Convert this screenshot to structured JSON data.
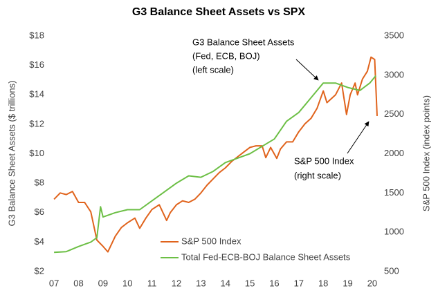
{
  "chart_data": {
    "type": "line",
    "title": "G3 Balance Sheet Assets vs SPX",
    "ylabel": "G3 Balance Sheet Assets ($ trillions)",
    "y2label": "S&P 500 Index (index points)",
    "xlim": [
      2006.77,
      2020.2
    ],
    "xticks": [
      {
        "value": 2007,
        "label": "07"
      },
      {
        "value": 2008,
        "label": "08"
      },
      {
        "value": 2009,
        "label": "09"
      },
      {
        "value": 2010,
        "label": "10"
      },
      {
        "value": 2011,
        "label": "11"
      },
      {
        "value": 2012,
        "label": "12"
      },
      {
        "value": 2013,
        "label": "13"
      },
      {
        "value": 2014,
        "label": "14"
      },
      {
        "value": 2015,
        "label": "15"
      },
      {
        "value": 2016,
        "label": "16"
      },
      {
        "value": 2017,
        "label": "17"
      },
      {
        "value": 2018,
        "label": "18"
      },
      {
        "value": 2019,
        "label": "19"
      },
      {
        "value": 2020,
        "label": "20"
      }
    ],
    "ylim": [
      2,
      18
    ],
    "yticks": [
      {
        "value": 2,
        "label": "$2"
      },
      {
        "value": 4,
        "label": "$4"
      },
      {
        "value": 6,
        "label": "$6"
      },
      {
        "value": 8,
        "label": "$8"
      },
      {
        "value": 10,
        "label": "$10"
      },
      {
        "value": 12,
        "label": "$12"
      },
      {
        "value": 14,
        "label": "$14"
      },
      {
        "value": 16,
        "label": "$16"
      },
      {
        "value": 18,
        "label": "$18"
      }
    ],
    "y2lim": [
      500,
      3500
    ],
    "y2ticks": [
      500,
      1000,
      1500,
      2000,
      2500,
      3000,
      3500
    ],
    "grid": false,
    "legend": "bottom",
    "series": [
      {
        "name": "S&P 500 Index",
        "color": "#e0631c",
        "axis": "y2",
        "x": [
          2007.0,
          2007.25,
          2007.5,
          2007.75,
          2008.0,
          2008.25,
          2008.5,
          2008.75,
          2009.0,
          2009.2,
          2009.5,
          2009.75,
          2010.0,
          2010.3,
          2010.5,
          2010.75,
          2011.0,
          2011.3,
          2011.6,
          2011.75,
          2012.0,
          2012.25,
          2012.5,
          2012.75,
          2013.0,
          2013.25,
          2013.5,
          2013.75,
          2014.0,
          2014.25,
          2014.5,
          2014.75,
          2015.0,
          2015.25,
          2015.5,
          2015.65,
          2015.85,
          2016.1,
          2016.25,
          2016.5,
          2016.75,
          2017.0,
          2017.25,
          2017.5,
          2017.75,
          2018.0,
          2018.15,
          2018.5,
          2018.75,
          2018.95,
          2019.1,
          2019.3,
          2019.4,
          2019.6,
          2019.8,
          2019.95,
          2020.1,
          2020.2
        ],
        "values": [
          1420,
          1500,
          1480,
          1520,
          1380,
          1380,
          1260,
          900,
          820,
          750,
          950,
          1060,
          1120,
          1180,
          1050,
          1180,
          1290,
          1350,
          1150,
          1250,
          1350,
          1400,
          1380,
          1420,
          1500,
          1600,
          1680,
          1760,
          1820,
          1900,
          1960,
          2020,
          2080,
          2100,
          2100,
          1950,
          2080,
          1940,
          2060,
          2150,
          2150,
          2280,
          2380,
          2450,
          2580,
          2800,
          2650,
          2750,
          2900,
          2500,
          2750,
          2900,
          2750,
          2950,
          3050,
          3230,
          3200,
          2480
        ]
      },
      {
        "name": "Total Fed-ECB-BOJ Balance Sheet Assets",
        "color": "#6cbf45",
        "axis": "y",
        "x": [
          2007.0,
          2007.5,
          2008.0,
          2008.5,
          2008.75,
          2008.9,
          2009.0,
          2009.5,
          2010.0,
          2010.5,
          2011.0,
          2011.5,
          2012.0,
          2012.5,
          2013.0,
          2013.5,
          2014.0,
          2014.5,
          2015.0,
          2015.5,
          2016.0,
          2016.5,
          2017.0,
          2017.5,
          2018.0,
          2018.5,
          2019.0,
          2019.5,
          2019.9,
          2020.15
        ],
        "values": [
          3.3,
          3.35,
          3.7,
          4.0,
          4.3,
          6.4,
          5.7,
          6.0,
          6.2,
          6.2,
          6.8,
          7.4,
          8.0,
          8.5,
          8.4,
          8.8,
          9.4,
          9.7,
          10.0,
          10.5,
          11.0,
          12.2,
          12.8,
          13.8,
          14.8,
          14.8,
          14.5,
          14.3,
          14.8,
          15.3
        ]
      }
    ],
    "annotations": [
      {
        "lines": [
          "G3 Balance Sheet Assets",
          "(Fed, ECB, BOJ)",
          "(left scale)"
        ]
      },
      {
        "lines": [
          "S&P 500 Index",
          "(right scale)"
        ]
      }
    ]
  }
}
